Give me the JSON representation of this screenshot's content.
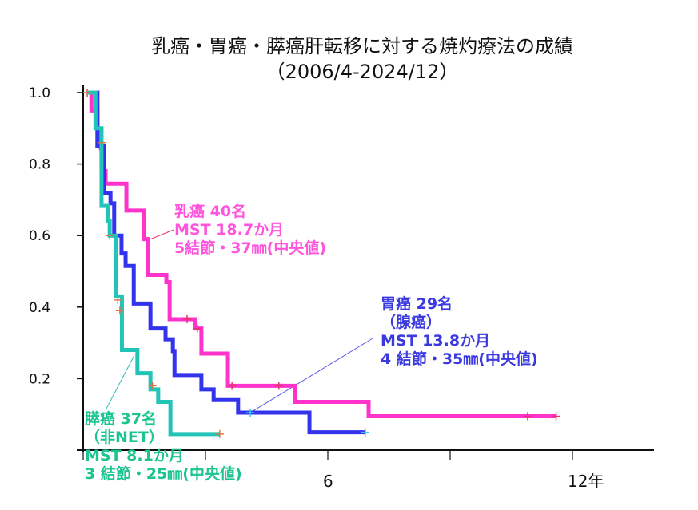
{
  "chart_data": {
    "type": "line",
    "title": "乳癌・胃癌・膵癌肝転移に対する焼灼療法の成績",
    "subtitle": "（2006/4-2024/12）",
    "xlabel": "",
    "ylabel": "",
    "xlim": [
      0,
      14
    ],
    "ylim": [
      0,
      1.0
    ],
    "x_ticks": [
      0,
      3,
      6,
      9,
      12
    ],
    "x_tick_labels": [
      "",
      "",
      "6",
      "",
      "12年"
    ],
    "y_ticks": [
      0.2,
      0.4,
      0.6,
      0.8,
      1.0
    ],
    "y_tick_labels": [
      "0.2",
      "0.4",
      "0.6",
      "0.8",
      "1.0"
    ],
    "grid": false,
    "step": true,
    "series": [
      {
        "key": "breast",
        "color": "#ff33cc",
        "label_color": "#ff55dd",
        "label_lines": [
          "乳癌 40名",
          "MST 18.7か月",
          "5結節・37㎜(中央値)"
        ],
        "steps": [
          [
            0.1,
            1.0
          ],
          [
            0.2,
            0.95
          ],
          [
            0.35,
            0.85
          ],
          [
            0.45,
            0.78
          ],
          [
            0.55,
            0.745
          ],
          [
            1.06,
            0.67
          ],
          [
            1.49,
            0.59
          ],
          [
            1.59,
            0.49
          ],
          [
            2.04,
            0.47
          ],
          [
            2.12,
            0.366
          ],
          [
            2.75,
            0.34
          ],
          [
            2.9,
            0.27
          ],
          [
            3.55,
            0.18
          ],
          [
            5.2,
            0.135
          ],
          [
            7.0,
            0.095
          ]
        ],
        "end": 11.6,
        "censored": [
          [
            0.1,
            1.0
          ],
          [
            0.4,
            0.85
          ],
          [
            2.55,
            0.366
          ],
          [
            2.8,
            0.34
          ],
          [
            3.65,
            0.18
          ],
          [
            4.8,
            0.18
          ],
          [
            10.9,
            0.095
          ],
          [
            11.6,
            0.095
          ]
        ],
        "censor_color": "#e8336a"
      },
      {
        "key": "stomach",
        "color": "#3333ee",
        "label_color": "#3a3ae0",
        "label_lines": [
          "胃癌 29名",
          "（腺癌）",
          "MST 13.8か月",
          "4 結節・35㎜(中央値)"
        ],
        "steps": [
          [
            0.27,
            1.0
          ],
          [
            0.35,
            0.85
          ],
          [
            0.5,
            0.72
          ],
          [
            0.67,
            0.69
          ],
          [
            0.76,
            0.6
          ],
          [
            0.94,
            0.55
          ],
          [
            1.04,
            0.515
          ],
          [
            1.24,
            0.41
          ],
          [
            1.65,
            0.34
          ],
          [
            2.02,
            0.31
          ],
          [
            2.2,
            0.277
          ],
          [
            2.24,
            0.21
          ],
          [
            2.9,
            0.17
          ],
          [
            3.2,
            0.14
          ],
          [
            3.8,
            0.105
          ],
          [
            5.55,
            0.05
          ]
        ],
        "end": 6.92,
        "censored": [
          [
            4.1,
            0.105
          ],
          [
            6.92,
            0.05
          ]
        ],
        "censor_color": "#33ccee"
      },
      {
        "key": "pancreas",
        "color": "#22c4b8",
        "label_color": "#1cc490",
        "label_lines": [
          "膵癌 37名",
          "（非NET）",
          "MST 8.1か月",
          "3 結節・25㎜(中央値)"
        ],
        "steps": [
          [
            0.1,
            1.0
          ],
          [
            0.3,
            0.9
          ],
          [
            0.45,
            0.8
          ],
          [
            0.45,
            0.685
          ],
          [
            0.6,
            0.64
          ],
          [
            0.65,
            0.6
          ],
          [
            0.8,
            0.43
          ],
          [
            0.95,
            0.28
          ],
          [
            1.33,
            0.215
          ],
          [
            1.65,
            0.17
          ],
          [
            1.84,
            0.135
          ],
          [
            2.14,
            0.045
          ]
        ],
        "end": 3.35,
        "censored": [
          [
            0.1,
            1.0
          ],
          [
            0.45,
            0.86
          ],
          [
            0.65,
            0.6
          ],
          [
            0.85,
            0.42
          ],
          [
            0.9,
            0.39
          ],
          [
            1.7,
            0.18
          ],
          [
            3.35,
            0.045
          ]
        ],
        "censor_color": "#d9774a"
      }
    ]
  }
}
